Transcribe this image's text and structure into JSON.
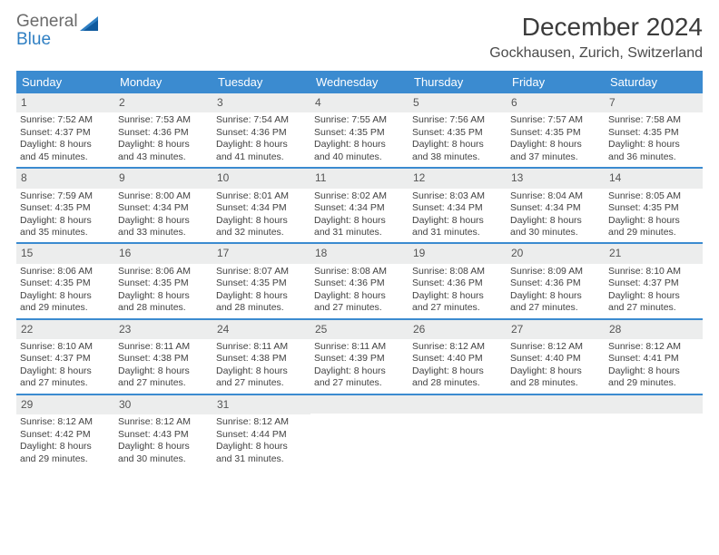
{
  "logo": {
    "line1": "General",
    "line2": "Blue"
  },
  "title": "December 2024",
  "location": "Gockhausen, Zurich, Switzerland",
  "colors": {
    "header_bar": "#3b8bd0",
    "daynum_bg": "#eceded",
    "rule": "#3b8bd0",
    "text": "#424242",
    "title_text": "#3b3b3b",
    "logo_gray": "#6b6b6b",
    "logo_blue": "#2f7fc3",
    "white": "#ffffff"
  },
  "fonts": {
    "title_size_pt": 21,
    "location_size_pt": 12,
    "dow_size_pt": 10,
    "daynum_size_pt": 9,
    "body_size_pt": 8
  },
  "dow": [
    "Sunday",
    "Monday",
    "Tuesday",
    "Wednesday",
    "Thursday",
    "Friday",
    "Saturday"
  ],
  "weeks": [
    [
      {
        "n": "1",
        "sr": "Sunrise: 7:52 AM",
        "ss": "Sunset: 4:37 PM",
        "d1": "Daylight: 8 hours",
        "d2": "and 45 minutes."
      },
      {
        "n": "2",
        "sr": "Sunrise: 7:53 AM",
        "ss": "Sunset: 4:36 PM",
        "d1": "Daylight: 8 hours",
        "d2": "and 43 minutes."
      },
      {
        "n": "3",
        "sr": "Sunrise: 7:54 AM",
        "ss": "Sunset: 4:36 PM",
        "d1": "Daylight: 8 hours",
        "d2": "and 41 minutes."
      },
      {
        "n": "4",
        "sr": "Sunrise: 7:55 AM",
        "ss": "Sunset: 4:35 PM",
        "d1": "Daylight: 8 hours",
        "d2": "and 40 minutes."
      },
      {
        "n": "5",
        "sr": "Sunrise: 7:56 AM",
        "ss": "Sunset: 4:35 PM",
        "d1": "Daylight: 8 hours",
        "d2": "and 38 minutes."
      },
      {
        "n": "6",
        "sr": "Sunrise: 7:57 AM",
        "ss": "Sunset: 4:35 PM",
        "d1": "Daylight: 8 hours",
        "d2": "and 37 minutes."
      },
      {
        "n": "7",
        "sr": "Sunrise: 7:58 AM",
        "ss": "Sunset: 4:35 PM",
        "d1": "Daylight: 8 hours",
        "d2": "and 36 minutes."
      }
    ],
    [
      {
        "n": "8",
        "sr": "Sunrise: 7:59 AM",
        "ss": "Sunset: 4:35 PM",
        "d1": "Daylight: 8 hours",
        "d2": "and 35 minutes."
      },
      {
        "n": "9",
        "sr": "Sunrise: 8:00 AM",
        "ss": "Sunset: 4:34 PM",
        "d1": "Daylight: 8 hours",
        "d2": "and 33 minutes."
      },
      {
        "n": "10",
        "sr": "Sunrise: 8:01 AM",
        "ss": "Sunset: 4:34 PM",
        "d1": "Daylight: 8 hours",
        "d2": "and 32 minutes."
      },
      {
        "n": "11",
        "sr": "Sunrise: 8:02 AM",
        "ss": "Sunset: 4:34 PM",
        "d1": "Daylight: 8 hours",
        "d2": "and 31 minutes."
      },
      {
        "n": "12",
        "sr": "Sunrise: 8:03 AM",
        "ss": "Sunset: 4:34 PM",
        "d1": "Daylight: 8 hours",
        "d2": "and 31 minutes."
      },
      {
        "n": "13",
        "sr": "Sunrise: 8:04 AM",
        "ss": "Sunset: 4:34 PM",
        "d1": "Daylight: 8 hours",
        "d2": "and 30 minutes."
      },
      {
        "n": "14",
        "sr": "Sunrise: 8:05 AM",
        "ss": "Sunset: 4:35 PM",
        "d1": "Daylight: 8 hours",
        "d2": "and 29 minutes."
      }
    ],
    [
      {
        "n": "15",
        "sr": "Sunrise: 8:06 AM",
        "ss": "Sunset: 4:35 PM",
        "d1": "Daylight: 8 hours",
        "d2": "and 29 minutes."
      },
      {
        "n": "16",
        "sr": "Sunrise: 8:06 AM",
        "ss": "Sunset: 4:35 PM",
        "d1": "Daylight: 8 hours",
        "d2": "and 28 minutes."
      },
      {
        "n": "17",
        "sr": "Sunrise: 8:07 AM",
        "ss": "Sunset: 4:35 PM",
        "d1": "Daylight: 8 hours",
        "d2": "and 28 minutes."
      },
      {
        "n": "18",
        "sr": "Sunrise: 8:08 AM",
        "ss": "Sunset: 4:36 PM",
        "d1": "Daylight: 8 hours",
        "d2": "and 27 minutes."
      },
      {
        "n": "19",
        "sr": "Sunrise: 8:08 AM",
        "ss": "Sunset: 4:36 PM",
        "d1": "Daylight: 8 hours",
        "d2": "and 27 minutes."
      },
      {
        "n": "20",
        "sr": "Sunrise: 8:09 AM",
        "ss": "Sunset: 4:36 PM",
        "d1": "Daylight: 8 hours",
        "d2": "and 27 minutes."
      },
      {
        "n": "21",
        "sr": "Sunrise: 8:10 AM",
        "ss": "Sunset: 4:37 PM",
        "d1": "Daylight: 8 hours",
        "d2": "and 27 minutes."
      }
    ],
    [
      {
        "n": "22",
        "sr": "Sunrise: 8:10 AM",
        "ss": "Sunset: 4:37 PM",
        "d1": "Daylight: 8 hours",
        "d2": "and 27 minutes."
      },
      {
        "n": "23",
        "sr": "Sunrise: 8:11 AM",
        "ss": "Sunset: 4:38 PM",
        "d1": "Daylight: 8 hours",
        "d2": "and 27 minutes."
      },
      {
        "n": "24",
        "sr": "Sunrise: 8:11 AM",
        "ss": "Sunset: 4:38 PM",
        "d1": "Daylight: 8 hours",
        "d2": "and 27 minutes."
      },
      {
        "n": "25",
        "sr": "Sunrise: 8:11 AM",
        "ss": "Sunset: 4:39 PM",
        "d1": "Daylight: 8 hours",
        "d2": "and 27 minutes."
      },
      {
        "n": "26",
        "sr": "Sunrise: 8:12 AM",
        "ss": "Sunset: 4:40 PM",
        "d1": "Daylight: 8 hours",
        "d2": "and 28 minutes."
      },
      {
        "n": "27",
        "sr": "Sunrise: 8:12 AM",
        "ss": "Sunset: 4:40 PM",
        "d1": "Daylight: 8 hours",
        "d2": "and 28 minutes."
      },
      {
        "n": "28",
        "sr": "Sunrise: 8:12 AM",
        "ss": "Sunset: 4:41 PM",
        "d1": "Daylight: 8 hours",
        "d2": "and 29 minutes."
      }
    ],
    [
      {
        "n": "29",
        "sr": "Sunrise: 8:12 AM",
        "ss": "Sunset: 4:42 PM",
        "d1": "Daylight: 8 hours",
        "d2": "and 29 minutes."
      },
      {
        "n": "30",
        "sr": "Sunrise: 8:12 AM",
        "ss": "Sunset: 4:43 PM",
        "d1": "Daylight: 8 hours",
        "d2": "and 30 minutes."
      },
      {
        "n": "31",
        "sr": "Sunrise: 8:12 AM",
        "ss": "Sunset: 4:44 PM",
        "d1": "Daylight: 8 hours",
        "d2": "and 31 minutes."
      },
      null,
      null,
      null,
      null
    ]
  ]
}
